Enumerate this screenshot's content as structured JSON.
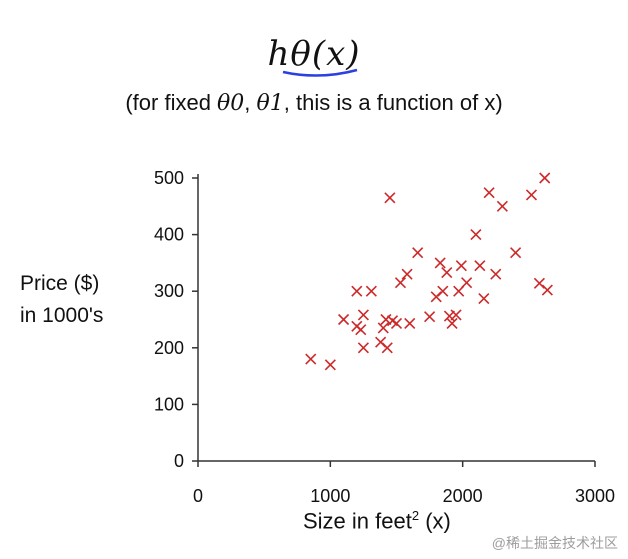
{
  "title": "hθ(x)",
  "subtitle": {
    "prefix": "(for fixed ",
    "theta0": "θ0",
    "sep": ", ",
    "theta1": "θ1",
    "suffix": ", this is a function of x)"
  },
  "colors": {
    "marker": "#cc2a2a",
    "axis": "#333333",
    "underline": "#2c3fe0"
  },
  "chart_data": {
    "type": "scatter",
    "xlabel": {
      "text": "Size in feet",
      "sup": "2",
      "suffix": " (x)"
    },
    "ylabel": [
      "Price ($)",
      "in 1000's"
    ],
    "xlim": [
      0,
      3000
    ],
    "ylim": [
      0,
      500
    ],
    "xticks": [
      0,
      1000,
      2000,
      3000
    ],
    "yticks": [
      0,
      100,
      200,
      300,
      400,
      500
    ],
    "grid": false,
    "marker": "x",
    "points": [
      [
        852,
        180
      ],
      [
        1000,
        170
      ],
      [
        1100,
        250
      ],
      [
        1200,
        300
      ],
      [
        1200,
        238
      ],
      [
        1230,
        232
      ],
      [
        1250,
        200
      ],
      [
        1250,
        258
      ],
      [
        1310,
        300
      ],
      [
        1380,
        210
      ],
      [
        1400,
        235
      ],
      [
        1420,
        250
      ],
      [
        1430,
        200
      ],
      [
        1450,
        465
      ],
      [
        1470,
        248
      ],
      [
        1500,
        243
      ],
      [
        1530,
        315
      ],
      [
        1580,
        330
      ],
      [
        1600,
        243
      ],
      [
        1660,
        368
      ],
      [
        1750,
        255
      ],
      [
        1800,
        290
      ],
      [
        1830,
        350
      ],
      [
        1850,
        300
      ],
      [
        1880,
        333
      ],
      [
        1900,
        256
      ],
      [
        1920,
        243
      ],
      [
        1950,
        258
      ],
      [
        1970,
        300
      ],
      [
        1990,
        345
      ],
      [
        2030,
        315
      ],
      [
        2100,
        400
      ],
      [
        2130,
        345
      ],
      [
        2160,
        287
      ],
      [
        2200,
        474
      ],
      [
        2250,
        330
      ],
      [
        2300,
        450
      ],
      [
        2400,
        368
      ],
      [
        2520,
        470
      ],
      [
        2580,
        314
      ],
      [
        2620,
        500
      ],
      [
        2640,
        302
      ]
    ]
  },
  "watermark": "@稀土掘金技术社区"
}
